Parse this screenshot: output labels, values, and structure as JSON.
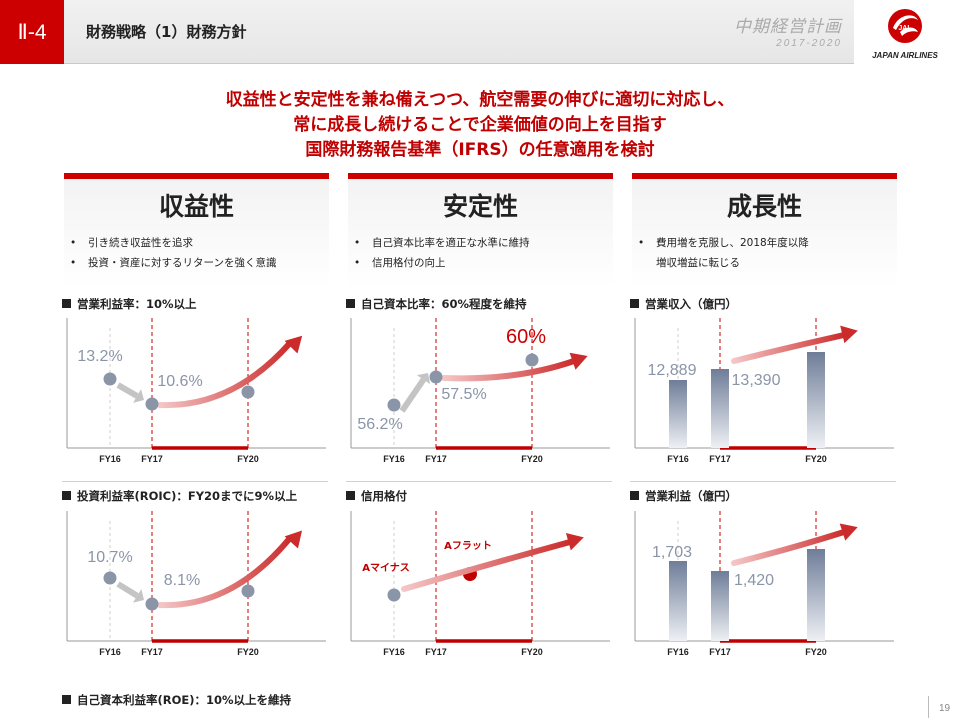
{
  "header": {
    "section": "Ⅱ-4",
    "title": "財務戦略（1）財務方針",
    "plan_title": "中期経営計画",
    "plan_years": "2017-2020",
    "logo_text": "JAPAN AIRLINES"
  },
  "headline": {
    "line1": "収益性と安定性を兼ね備えつつ、航空需要の伸びに適切に対応し、",
    "line2": "常に成長し続けることで企業価値の向上を目指す",
    "line3": "国際財務報告基準（IFRS）の任意適用を検討"
  },
  "pillars": [
    {
      "title": "収益性",
      "bullets": [
        "引き続き収益性を追求",
        "投資・資産に対するリターンを強く意識"
      ]
    },
    {
      "title": "安定性",
      "bullets": [
        "自己資本比率を適正な水準に維持",
        "信用格付の向上"
      ]
    },
    {
      "title": "成長性",
      "bullets": [
        "費用増を克服し、2018年度以降",
        "増収増益に転じる"
      ]
    }
  ],
  "kpis": {
    "op_margin": "営業利益率：10%以上",
    "equity_ratio": "自己資本比率：60%程度を維持",
    "revenue": "営業収入（億円）",
    "roic": "投資利益率(ROIC)：FY20までに9%以上",
    "rating": "信用格付",
    "op_income": "営業利益（億円）",
    "roe": "自己資本利益率(ROE)：10%以上を維持"
  },
  "chart_data": [
    {
      "type": "line",
      "title": "営業利益率：10%以上",
      "categories": [
        "FY16",
        "FY17",
        "FY20"
      ],
      "labels": [
        "13.2%",
        "10.6%",
        ""
      ],
      "values": [
        13.2,
        10.6,
        null
      ]
    },
    {
      "type": "line",
      "title": "自己資本比率：60%程度を維持",
      "categories": [
        "FY16",
        "FY17",
        "FY20"
      ],
      "labels": [
        "56.2%",
        "57.5%",
        "60%"
      ],
      "values": [
        56.2,
        57.5,
        60
      ]
    },
    {
      "type": "bar",
      "title": "営業収入（億円）",
      "categories": [
        "FY16",
        "FY17",
        "FY20"
      ],
      "labels": [
        "12,889",
        "13,390",
        ""
      ],
      "values": [
        12889,
        13390,
        null
      ]
    },
    {
      "type": "line",
      "title": "投資利益率(ROIC)：FY20までに9%以上",
      "categories": [
        "FY16",
        "FY17",
        "FY20"
      ],
      "labels": [
        "10.7%",
        "8.1%",
        ""
      ],
      "values": [
        10.7,
        8.1,
        null
      ]
    },
    {
      "type": "scatter",
      "title": "信用格付",
      "categories": [
        "FY16",
        "FY17",
        "FY20"
      ],
      "labels": [
        "Aマイナス",
        "Aフラット"
      ]
    },
    {
      "type": "bar",
      "title": "営業利益（億円）",
      "categories": [
        "FY16",
        "FY17",
        "FY20"
      ],
      "labels": [
        "1,703",
        "1,420",
        ""
      ],
      "values": [
        1703,
        1420,
        null
      ]
    }
  ],
  "page_number": "19",
  "colors": {
    "accent": "#cc0000",
    "point": "#8a95a8",
    "label": "#8a95a8"
  }
}
